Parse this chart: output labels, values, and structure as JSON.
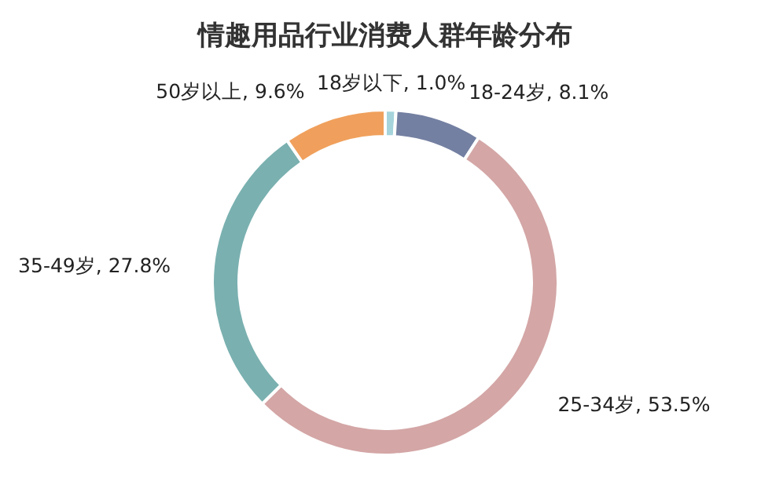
{
  "chart_data": {
    "type": "donut",
    "title": "情趣用品行业消费人群年龄分布",
    "categories": [
      "18岁以下",
      "18-24岁",
      "25-34岁",
      "35-49岁",
      "50岁以上"
    ],
    "values": [
      1.0,
      8.1,
      53.5,
      27.8,
      9.6
    ],
    "value_labels": [
      "1.0%",
      "8.1%",
      "53.5%",
      "27.8%",
      "9.6%"
    ],
    "colors": [
      "#a6d4dc",
      "#7480a2",
      "#d4a6a6",
      "#7ab0b0",
      "#f0a05c"
    ],
    "legend": false
  }
}
